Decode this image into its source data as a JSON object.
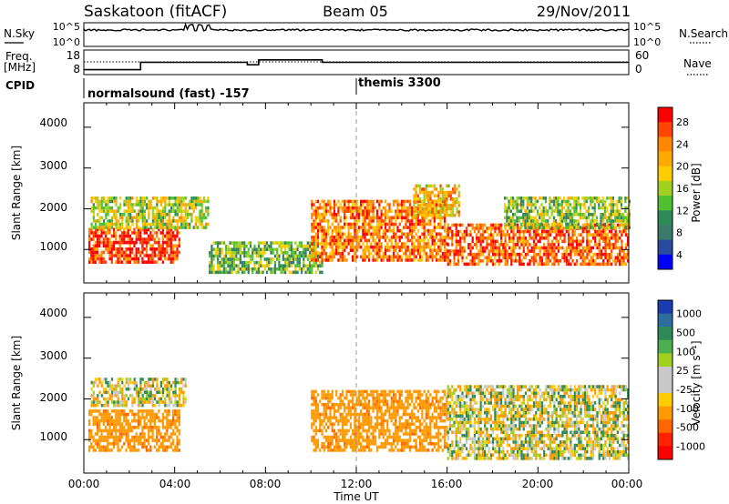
{
  "header": {
    "station": "Saskatoon (fitACF)",
    "beam": "Beam 05",
    "date": "29/Nov/2011"
  },
  "sky_panel": {
    "left_label": "N.Sky",
    "right_label": "N.Search",
    "left_ticks": [
      "10^5",
      "10^0"
    ],
    "right_ticks": [
      "10^5",
      "10^0"
    ]
  },
  "freq_panel": {
    "left_label_line1": "Freq.",
    "left_label_line2": "[MHz]",
    "right_label": "Nave",
    "left_ticks": [
      "18",
      "8"
    ],
    "right_ticks": [
      "60",
      "0"
    ]
  },
  "cpid": {
    "label": "CPID",
    "mode1": "normalsound (fast) -157",
    "mode2": "themis 3300"
  },
  "power_panel": {
    "ylabel": "Slant Range [km]",
    "yticks": [
      "4000",
      "3000",
      "2000",
      "1000"
    ],
    "colorbar_label": "Power [dB]",
    "colorbar_ticks": [
      "28",
      "24",
      "20",
      "16",
      "12",
      "8",
      "4"
    ],
    "colorbar_colors": [
      "#ff0000",
      "#ff4400",
      "#ff8800",
      "#ffaa00",
      "#ffcc00",
      "#a0d020",
      "#50c030",
      "#2e8b57",
      "#3a7a6a",
      "#2a4aa0",
      "#0000ff"
    ]
  },
  "velocity_panel": {
    "ylabel": "Slant Range [km]",
    "yticks": [
      "4000",
      "3000",
      "2000",
      "1000"
    ],
    "colorbar_label": "Velocity [m s⁻¹]",
    "colorbar_ticks": [
      "1000",
      "500",
      "100",
      "25",
      "-25",
      "-100",
      "-500",
      "-1000"
    ],
    "colorbar_colors": [
      "#1a3cb0",
      "#2e6e9e",
      "#2e8b57",
      "#4caf50",
      "#a0d020",
      "#c8c8c8",
      "#c8c8c8",
      "#ffcc00",
      "#ff9900",
      "#ff6600",
      "#ff2200",
      "#ff0000"
    ]
  },
  "x_axis": {
    "ticks": [
      "00:00",
      "04:00",
      "08:00",
      "12:00",
      "16:00",
      "20:00",
      "00:00"
    ],
    "label": "Time UT"
  },
  "chart_data": {
    "type": "heatmap",
    "title": "Saskatoon (fitACF) Beam 05 29/Nov/2011",
    "xlabel": "Time UT",
    "ylabel": "Slant Range [km]",
    "xlim": [
      0,
      24
    ],
    "ylim": [
      180,
      4600
    ],
    "power_scale_db": [
      0,
      30
    ],
    "velocity_scale_ms": [
      -1000,
      1000
    ],
    "frequency_mhz": {
      "hours": [
        0,
        2.5,
        7.2,
        7.7,
        10.5,
        24
      ],
      "values": [
        10,
        13,
        12,
        14,
        13,
        9
      ]
    },
    "power_bands": [
      {
        "t0": 0.2,
        "t1": 4.2,
        "r0": 650,
        "r1": 1500,
        "db": 28
      },
      {
        "t0": 0.3,
        "t1": 5.5,
        "r0": 1500,
        "r1": 2300,
        "db": 16
      },
      {
        "t0": 5.5,
        "t1": 10.5,
        "r0": 400,
        "r1": 1200,
        "db": 12
      },
      {
        "t0": 10.0,
        "t1": 16.0,
        "r0": 700,
        "r1": 2200,
        "db": 24
      },
      {
        "t0": 14.5,
        "t1": 16.5,
        "r0": 1800,
        "r1": 2600,
        "db": 20
      },
      {
        "t0": 16.0,
        "t1": 24.0,
        "r0": 600,
        "r1": 1600,
        "db": 26
      },
      {
        "t0": 18.5,
        "t1": 24.0,
        "r0": 1500,
        "r1": 2300,
        "db": 14
      }
    ],
    "velocity_bands": [
      {
        "t0": 0.2,
        "t1": 4.2,
        "r0": 700,
        "r1": 1700,
        "v": -200
      },
      {
        "t0": 0.3,
        "t1": 4.5,
        "r0": 1800,
        "r1": 2500,
        "v": 0
      },
      {
        "t0": 10.0,
        "t1": 16.0,
        "r0": 700,
        "r1": 2200,
        "v": -200
      },
      {
        "t0": 16.0,
        "t1": 24.0,
        "r0": 500,
        "r1": 2300,
        "v": 0
      }
    ]
  }
}
